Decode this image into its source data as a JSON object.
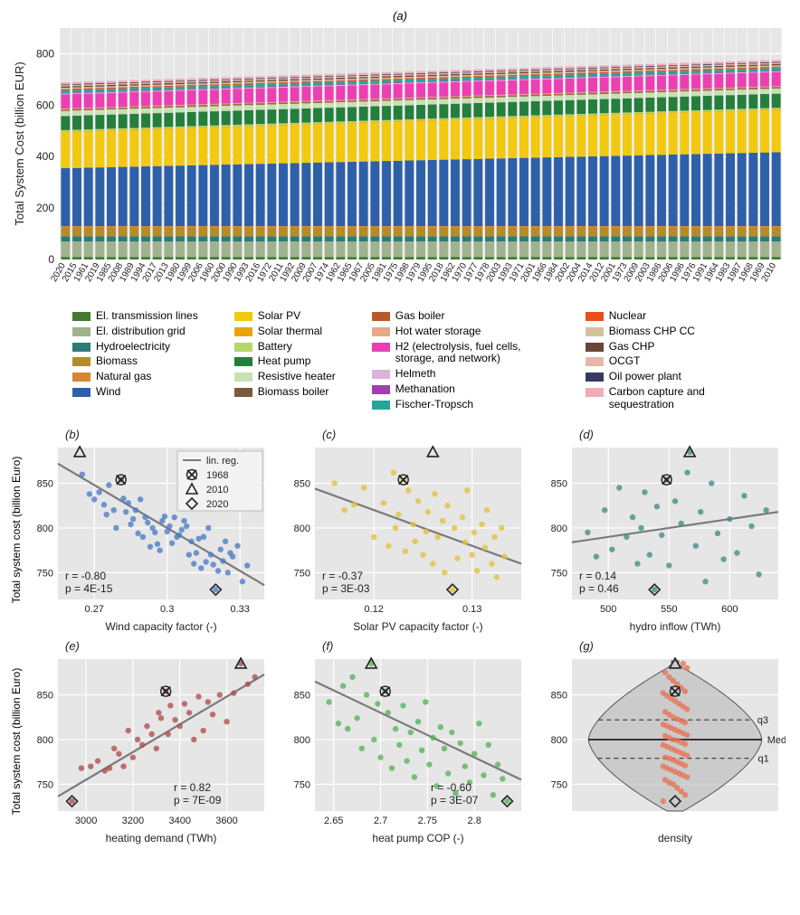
{
  "panel_a": {
    "title": "(a)",
    "ylabel": "Total System Cost (billion EUR)",
    "ylim": [
      0,
      900
    ],
    "ytick_step": 200,
    "bar_width": 0.78,
    "background": "#e6e6e6",
    "grid_color": "#ffffff",
    "categories": [
      "2020",
      "2015",
      "1961",
      "2019",
      "1985",
      "2008",
      "1989",
      "1994",
      "2017",
      "2013",
      "1980",
      "1999",
      "2006",
      "1960",
      "2000",
      "1990",
      "1993",
      "2016",
      "1972",
      "2011",
      "1992",
      "2009",
      "2007",
      "1974",
      "1962",
      "1965",
      "1967",
      "2005",
      "1981",
      "1975",
      "1998",
      "1979",
      "1995",
      "2018",
      "1962",
      "1970",
      "1977",
      "1978",
      "2003",
      "1993",
      "1971",
      "2001",
      "1966",
      "1984",
      "2002",
      "2004",
      "2014",
      "2012",
      "2001",
      "1973",
      "2009",
      "2003",
      "1986",
      "2006",
      "1996",
      "1976",
      "1991",
      "1964",
      "1983",
      "1987",
      "1968",
      "1969",
      "2010"
    ],
    "stack_order": [
      "s0",
      "s1",
      "s2",
      "s3",
      "s4",
      "s5",
      "s6",
      "s7",
      "s8",
      "s9",
      "s10",
      "s11",
      "s12",
      "s13",
      "s14",
      "s15",
      "s16",
      "s17",
      "s18",
      "s19",
      "s20",
      "s21",
      "s22",
      "s23",
      "s24"
    ],
    "colors": {
      "s0": "#427b31",
      "s1": "#a0b38e",
      "s2": "#2b7c78",
      "s3": "#b38c2b",
      "s4": "#d68532",
      "s5": "#2e5fa9",
      "s6": "#f2c90f",
      "s7": "#e8a40d",
      "s8": "#b4d767",
      "s9": "#247f3c",
      "s10": "#c8e0b4",
      "s11": "#7a5a3a",
      "s12": "#b85a28",
      "s13": "#e7a98a",
      "s14": "#ec3fb3",
      "s15": "#d9b5db",
      "s16": "#a03fb0",
      "s17": "#24a699",
      "s18": "#e94e1b",
      "s19": "#d4c39a",
      "s20": "#6b4535",
      "s21": "#e8b6a9",
      "s22": "#363a60",
      "s23": "#efadb5",
      "s24": "#00000000"
    },
    "base_values": {
      "s0": 10,
      "s1": 60,
      "s2": 20,
      "s3": 35,
      "s4": 5,
      "s5": 225,
      "s6": 140,
      "s7": 3,
      "s8": 5,
      "s9": 55,
      "s10": 20,
      "s11": 3,
      "s12": 3,
      "s13": 3,
      "s14": 55,
      "s15": 3,
      "s16": 3,
      "s17": 10,
      "s18": 5,
      "s19": 5,
      "s20": 5,
      "s21": 5,
      "s22": 3,
      "s23": 8,
      "s24": 0
    },
    "trend_wind_extra_per_step": 1.0,
    "trend_solar_extra_per_step": 0.4
  },
  "legend_cols": [
    [
      {
        "c": "#427b31",
        "t": "El. transmission lines"
      },
      {
        "c": "#a0b38e",
        "t": "El. distribution grid"
      },
      {
        "c": "#2b7c78",
        "t": "Hydroelectricity"
      },
      {
        "c": "#b38c2b",
        "t": "Biomass"
      },
      {
        "c": "#d68532",
        "t": "Natural gas"
      },
      {
        "c": "#2e5fa9",
        "t": "Wind"
      }
    ],
    [
      {
        "c": "#f2c90f",
        "t": "Solar PV"
      },
      {
        "c": "#e8a40d",
        "t": "Solar thermal"
      },
      {
        "c": "#b4d767",
        "t": "Battery"
      },
      {
        "c": "#247f3c",
        "t": "Heat pump"
      },
      {
        "c": "#c8e0b4",
        "t": "Resistive heater"
      },
      {
        "c": "#7a5a3a",
        "t": "Biomass boiler"
      }
    ],
    [
      {
        "c": "#b85a28",
        "t": "Gas boiler"
      },
      {
        "c": "#e7a98a",
        "t": "Hot water storage"
      },
      {
        "c": "#ec3fb3",
        "t": "H2 (electrolysis, fuel cells, storage, and network)"
      },
      {
        "c": "#d9b5db",
        "t": "Helmeth"
      },
      {
        "c": "#a03fb0",
        "t": "Methanation"
      },
      {
        "c": "#24a699",
        "t": "Fischer-Tropsch"
      }
    ],
    [
      {
        "c": "#e94e1b",
        "t": "Nuclear"
      },
      {
        "c": "#d4c39a",
        "t": "Biomass CHP CC"
      },
      {
        "c": "#6b4535",
        "t": "Gas CHP"
      },
      {
        "c": "#e8b6a9",
        "t": "OCGT"
      },
      {
        "c": "#363a60",
        "t": "Oil power plant"
      },
      {
        "c": "#efadb5",
        "t": "Carbon capture and sequestration"
      }
    ]
  ],
  "scatter_common": {
    "ylim": [
      720,
      890
    ],
    "yticks": [
      750,
      800,
      850
    ],
    "background": "#e6e6e6",
    "grid_color": "#ffffff",
    "marker_r": 3.2,
    "marker_opacity": 0.78,
    "axis_fontsize": 11,
    "ylabel": "Total system cost (billion Euro)",
    "linreg_color": "#7a7a7a",
    "legend_items": [
      {
        "type": "line",
        "label": "lin. reg."
      },
      {
        "type": "x",
        "label": "1968"
      },
      {
        "type": "tri",
        "label": "2010"
      },
      {
        "type": "diamond",
        "label": "2020"
      }
    ],
    "markers_special": {
      "1968": 854,
      "2010": 885,
      "2020": 731
    }
  },
  "scatters": {
    "b": {
      "title": "(b)",
      "xlabel": "Wind capacity factor (-)",
      "color": "#4a7bc4",
      "xlim": [
        0.255,
        0.34
      ],
      "xticks": [
        0.27,
        0.3,
        0.33
      ],
      "r": "-0.80",
      "p": "4E-15",
      "slope": -1600,
      "intercept": 1280,
      "special_x": {
        "1968": 0.281,
        "2010": 0.264,
        "2020": 0.32
      },
      "pts": [
        [
          0.265,
          860
        ],
        [
          0.268,
          838
        ],
        [
          0.27,
          832
        ],
        [
          0.272,
          840
        ],
        [
          0.274,
          826
        ],
        [
          0.275,
          815
        ],
        [
          0.276,
          848
        ],
        [
          0.278,
          820
        ],
        [
          0.279,
          800
        ],
        [
          0.281,
          854
        ],
        [
          0.282,
          833
        ],
        [
          0.283,
          818
        ],
        [
          0.284,
          828
        ],
        [
          0.285,
          804
        ],
        [
          0.286,
          810
        ],
        [
          0.287,
          820
        ],
        [
          0.288,
          794
        ],
        [
          0.289,
          832
        ],
        [
          0.29,
          790
        ],
        [
          0.291,
          812
        ],
        [
          0.292,
          806
        ],
        [
          0.293,
          779
        ],
        [
          0.294,
          800
        ],
        [
          0.295,
          795
        ],
        [
          0.296,
          782
        ],
        [
          0.297,
          775
        ],
        [
          0.298,
          808
        ],
        [
          0.299,
          813
        ],
        [
          0.3,
          796
        ],
        [
          0.301,
          802
        ],
        [
          0.302,
          783
        ],
        [
          0.303,
          812
        ],
        [
          0.304,
          790
        ],
        [
          0.305,
          792
        ],
        [
          0.306,
          798
        ],
        [
          0.307,
          808
        ],
        [
          0.308,
          802
        ],
        [
          0.309,
          770
        ],
        [
          0.31,
          785
        ],
        [
          0.311,
          760
        ],
        [
          0.312,
          772
        ],
        [
          0.313,
          788
        ],
        [
          0.314,
          755
        ],
        [
          0.315,
          790
        ],
        [
          0.316,
          762
        ],
        [
          0.317,
          800
        ],
        [
          0.318,
          770
        ],
        [
          0.319,
          759
        ],
        [
          0.32,
          731
        ],
        [
          0.321,
          752
        ],
        [
          0.322,
          776
        ],
        [
          0.323,
          763
        ],
        [
          0.324,
          785
        ],
        [
          0.325,
          750
        ],
        [
          0.326,
          772
        ],
        [
          0.327,
          768
        ],
        [
          0.329,
          780
        ],
        [
          0.331,
          740
        ],
        [
          0.333,
          758
        ]
      ]
    },
    "c": {
      "title": "(c)",
      "xlabel": "Solar PV capacity factor (-)",
      "color": "#e0c13a",
      "xlim": [
        0.114,
        0.135
      ],
      "xticks": [
        0.12,
        0.13
      ],
      "r": "-0.37",
      "p": "3E-03",
      "slope": -4000,
      "intercept": 1300,
      "special_x": {
        "1968": 0.123,
        "2010": 0.126,
        "2020": 0.128
      },
      "pts": [
        [
          0.116,
          850
        ],
        [
          0.117,
          820
        ],
        [
          0.118,
          826
        ],
        [
          0.119,
          845
        ],
        [
          0.12,
          790
        ],
        [
          0.121,
          828
        ],
        [
          0.1215,
          780
        ],
        [
          0.122,
          862
        ],
        [
          0.1222,
          800
        ],
        [
          0.1225,
          815
        ],
        [
          0.123,
          854
        ],
        [
          0.1232,
          774
        ],
        [
          0.1235,
          842
        ],
        [
          0.124,
          804
        ],
        [
          0.1242,
          785
        ],
        [
          0.1245,
          830
        ],
        [
          0.125,
          770
        ],
        [
          0.1253,
          796
        ],
        [
          0.1255,
          818
        ],
        [
          0.126,
          760
        ],
        [
          0.1262,
          838
        ],
        [
          0.1265,
          790
        ],
        [
          0.127,
          808
        ],
        [
          0.1272,
          750
        ],
        [
          0.1275,
          825
        ],
        [
          0.128,
          731
        ],
        [
          0.1282,
          800
        ],
        [
          0.1285,
          766
        ],
        [
          0.129,
          812
        ],
        [
          0.1293,
          784
        ],
        [
          0.1295,
          842
        ],
        [
          0.13,
          770
        ],
        [
          0.1302,
          795
        ],
        [
          0.1305,
          752
        ],
        [
          0.131,
          804
        ],
        [
          0.1313,
          778
        ],
        [
          0.1315,
          820
        ],
        [
          0.132,
          760
        ],
        [
          0.1323,
          790
        ],
        [
          0.1325,
          745
        ],
        [
          0.133,
          800
        ],
        [
          0.1333,
          768
        ]
      ]
    },
    "d": {
      "title": "(d)",
      "xlabel": "hydro inflow (TWh)",
      "color": "#3d8d88",
      "xlim": [
        470,
        640
      ],
      "xticks": [
        500,
        550,
        600
      ],
      "r": "0.14",
      "p": "0.46",
      "slope": 0.2,
      "intercept": 690,
      "special_x": {
        "1968": 548,
        "2010": 567,
        "2020": 538
      },
      "pts": [
        [
          483,
          795
        ],
        [
          490,
          768
        ],
        [
          497,
          820
        ],
        [
          503,
          776
        ],
        [
          509,
          845
        ],
        [
          515,
          790
        ],
        [
          520,
          812
        ],
        [
          524,
          760
        ],
        [
          527,
          800
        ],
        [
          530,
          840
        ],
        [
          534,
          770
        ],
        [
          538,
          731
        ],
        [
          540,
          824
        ],
        [
          544,
          792
        ],
        [
          548,
          854
        ],
        [
          550,
          758
        ],
        [
          555,
          830
        ],
        [
          560,
          805
        ],
        [
          565,
          862
        ],
        [
          567,
          885
        ],
        [
          572,
          780
        ],
        [
          576,
          818
        ],
        [
          580,
          740
        ],
        [
          585,
          850
        ],
        [
          590,
          794
        ],
        [
          595,
          765
        ],
        [
          600,
          810
        ],
        [
          606,
          772
        ],
        [
          612,
          836
        ],
        [
          618,
          802
        ],
        [
          624,
          748
        ],
        [
          630,
          820
        ]
      ]
    },
    "e": {
      "title": "(e)",
      "xlabel": "heating demand (TWh)",
      "color": "#ae4b4e",
      "xlim": [
        2880,
        3760
      ],
      "xticks": [
        3000,
        3200,
        3400,
        3600
      ],
      "r": "0.82",
      "p": "7E-09",
      "slope": 0.155,
      "intercept": 290,
      "special_x": {
        "1968": 3340,
        "2010": 3660,
        "2020": 2940
      },
      "pts": [
        [
          2940,
          731
        ],
        [
          2980,
          768
        ],
        [
          3020,
          770
        ],
        [
          3050,
          776
        ],
        [
          3080,
          765
        ],
        [
          3100,
          768
        ],
        [
          3120,
          790
        ],
        [
          3140,
          784
        ],
        [
          3160,
          770
        ],
        [
          3180,
          810
        ],
        [
          3200,
          780
        ],
        [
          3220,
          800
        ],
        [
          3240,
          794
        ],
        [
          3260,
          815
        ],
        [
          3280,
          806
        ],
        [
          3300,
          790
        ],
        [
          3310,
          830
        ],
        [
          3320,
          824
        ],
        [
          3340,
          854
        ],
        [
          3350,
          806
        ],
        [
          3360,
          838
        ],
        [
          3380,
          822
        ],
        [
          3400,
          815
        ],
        [
          3420,
          840
        ],
        [
          3440,
          830
        ],
        [
          3460,
          800
        ],
        [
          3480,
          848
        ],
        [
          3500,
          810
        ],
        [
          3520,
          842
        ],
        [
          3540,
          828
        ],
        [
          3570,
          850
        ],
        [
          3600,
          820
        ],
        [
          3630,
          852
        ],
        [
          3660,
          885
        ],
        [
          3690,
          862
        ],
        [
          3720,
          870
        ]
      ]
    },
    "f": {
      "title": "(f)",
      "xlabel": "heat pump COP (-)",
      "color": "#54b259",
      "xlim": [
        2.63,
        2.85
      ],
      "xticks": [
        2.65,
        2.7,
        2.75,
        2.8
      ],
      "r": "-0.60",
      "p": "3E-07",
      "slope": -500,
      "intercept": 2180,
      "special_x": {
        "1968": 2.705,
        "2010": 2.69,
        "2020": 2.835
      },
      "pts": [
        [
          2.645,
          842
        ],
        [
          2.655,
          818
        ],
        [
          2.66,
          860
        ],
        [
          2.665,
          812
        ],
        [
          2.67,
          870
        ],
        [
          2.675,
          824
        ],
        [
          2.68,
          790
        ],
        [
          2.685,
          850
        ],
        [
          2.69,
          885
        ],
        [
          2.693,
          800
        ],
        [
          2.697,
          840
        ],
        [
          2.7,
          780
        ],
        [
          2.705,
          854
        ],
        [
          2.708,
          830
        ],
        [
          2.712,
          768
        ],
        [
          2.716,
          812
        ],
        [
          2.72,
          794
        ],
        [
          2.724,
          838
        ],
        [
          2.728,
          776
        ],
        [
          2.732,
          808
        ],
        [
          2.736,
          758
        ],
        [
          2.74,
          820
        ],
        [
          2.744,
          788
        ],
        [
          2.748,
          842
        ],
        [
          2.752,
          772
        ],
        [
          2.756,
          802
        ],
        [
          2.76,
          748
        ],
        [
          2.764,
          814
        ],
        [
          2.768,
          790
        ],
        [
          2.772,
          762
        ],
        [
          2.776,
          808
        ],
        [
          2.78,
          740
        ],
        [
          2.785,
          796
        ],
        [
          2.79,
          770
        ],
        [
          2.795,
          752
        ],
        [
          2.8,
          784
        ],
        [
          2.805,
          818
        ],
        [
          2.81,
          760
        ],
        [
          2.815,
          794
        ],
        [
          2.82,
          738
        ],
        [
          2.825,
          772
        ],
        [
          2.83,
          756
        ],
        [
          2.835,
          731
        ]
      ]
    },
    "g": {
      "title": "(g)",
      "xlabel": "density",
      "color": "#e77255",
      "labels": {
        "med": "Med.",
        "q1": "q1",
        "q3": "q3"
      },
      "q1": 779,
      "med": 800,
      "q3": 822,
      "violin_fill": "#bfbfbf",
      "violin_stroke": "#555555",
      "special_x": {
        "1968": 0,
        "2010": 0,
        "2020": 0
      },
      "pts": [
        731,
        738,
        742,
        746,
        750,
        752,
        755,
        758,
        760,
        762,
        764,
        766,
        768,
        770,
        771,
        773,
        775,
        777,
        779,
        780,
        782,
        784,
        786,
        788,
        790,
        792,
        794,
        795,
        797,
        799,
        800,
        802,
        804,
        805,
        807,
        809,
        811,
        813,
        815,
        817,
        819,
        821,
        823,
        825,
        828,
        831,
        834,
        837,
        840,
        843,
        846,
        849,
        852,
        854,
        858,
        862,
        866,
        870,
        875,
        880,
        885
      ]
    }
  }
}
